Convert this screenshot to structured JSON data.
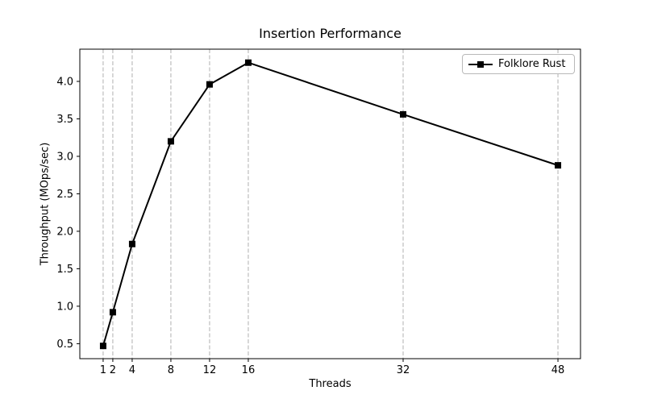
{
  "chart_data": {
    "type": "line",
    "title": "Insertion Performance",
    "xlabel": "Threads",
    "ylabel": "Throughput (MOps/sec)",
    "x": [
      1,
      2,
      4,
      8,
      12,
      16,
      32,
      48
    ],
    "series": [
      {
        "name": "Folklore Rust",
        "values": [
          0.47,
          0.92,
          1.83,
          3.2,
          3.96,
          4.25,
          3.56,
          2.88
        ],
        "color": "#000000",
        "marker": "square",
        "line_width": 2
      }
    ],
    "xticks": [
      1,
      2,
      4,
      8,
      12,
      16,
      32,
      48
    ],
    "yticks": [
      0.5,
      1.0,
      1.5,
      2.0,
      2.5,
      3.0,
      3.5,
      4.0
    ],
    "xlim": [
      -1.41,
      50.33
    ],
    "ylim": [
      0.3,
      4.43
    ],
    "grid": {
      "axis": "x",
      "style": "dashed",
      "color": "#b0b0b0"
    },
    "legend": {
      "position": "upper right"
    },
    "colors": {
      "axis": "#000000",
      "background": "#ffffff"
    }
  }
}
